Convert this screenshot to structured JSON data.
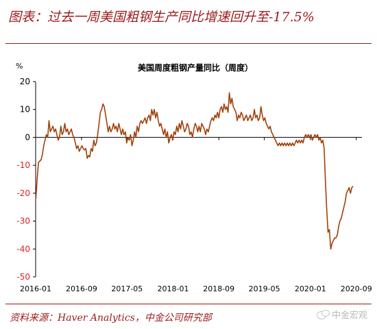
{
  "header": {
    "title": "图表：过去一周美国粗钢生产同比增速回升至-17.5%"
  },
  "footer": {
    "source": "资料来源：Haver Analytics，中金公司研究部",
    "watermark": "中金宏观"
  },
  "colors": {
    "accent": "#9a1a1a",
    "series": "#a0400a",
    "negative_tick": "#e0201a"
  },
  "chart_data": {
    "type": "line",
    "title": "美国周度粗钢产量同比（周度）",
    "ylabel": "%",
    "xlabel": "",
    "ylim": [
      -50,
      20
    ],
    "yticks": [
      20,
      10,
      0,
      -10,
      -20,
      -30,
      -40,
      -50
    ],
    "xlim": [
      "2016-01",
      "2020-10"
    ],
    "xticks": [
      "2016-01",
      "2016-09",
      "2017-05",
      "2018-01",
      "2018-09",
      "2019-05",
      "2020-01",
      "2020-09"
    ],
    "grid": false,
    "legend": "none",
    "series": [
      {
        "points": [
          [
            "2016-01-02",
            -22
          ],
          [
            "2016-01-09",
            -15
          ],
          [
            "2016-01-16",
            -9
          ],
          [
            "2016-01-23",
            -8.5
          ],
          [
            "2016-01-30",
            -8
          ],
          [
            "2016-02-06",
            -6
          ],
          [
            "2016-02-13",
            -3
          ],
          [
            "2016-02-20",
            -1
          ],
          [
            "2016-02-27",
            1
          ],
          [
            "2016-03-05",
            0
          ],
          [
            "2016-03-12",
            6
          ],
          [
            "2016-03-19",
            2
          ],
          [
            "2016-03-26",
            3
          ],
          [
            "2016-04-02",
            4
          ],
          [
            "2016-04-09",
            2
          ],
          [
            "2016-04-16",
            3
          ],
          [
            "2016-04-23",
            1
          ],
          [
            "2016-04-30",
            -1
          ],
          [
            "2016-05-07",
            0
          ],
          [
            "2016-05-14",
            4
          ],
          [
            "2016-05-21",
            1
          ],
          [
            "2016-05-28",
            2
          ],
          [
            "2016-06-04",
            5
          ],
          [
            "2016-06-11",
            2
          ],
          [
            "2016-06-18",
            3
          ],
          [
            "2016-06-25",
            1
          ],
          [
            "2016-07-02",
            2
          ],
          [
            "2016-07-09",
            3
          ],
          [
            "2016-07-16",
            1
          ],
          [
            "2016-07-23",
            0
          ],
          [
            "2016-07-30",
            -2
          ],
          [
            "2016-08-06",
            -4
          ],
          [
            "2016-08-13",
            -3
          ],
          [
            "2016-08-20",
            -5
          ],
          [
            "2016-08-27",
            -4
          ],
          [
            "2016-09-03",
            -3
          ],
          [
            "2016-09-10",
            -4
          ],
          [
            "2016-09-17",
            -4.5
          ],
          [
            "2016-09-24",
            -4
          ],
          [
            "2016-10-01",
            -7.5
          ],
          [
            "2016-10-08",
            -6.5
          ],
          [
            "2016-10-15",
            -7
          ],
          [
            "2016-10-22",
            -4
          ],
          [
            "2016-10-29",
            -5
          ],
          [
            "2016-11-05",
            -1
          ],
          [
            "2016-11-12",
            -3
          ],
          [
            "2016-11-19",
            -2
          ],
          [
            "2016-11-26",
            1
          ],
          [
            "2016-12-03",
            5
          ],
          [
            "2016-12-10",
            9
          ],
          [
            "2016-12-17",
            10
          ],
          [
            "2016-12-24",
            12
          ],
          [
            "2016-12-31",
            11
          ],
          [
            "2017-01-07",
            8
          ],
          [
            "2017-01-14",
            5
          ],
          [
            "2017-01-21",
            2
          ],
          [
            "2017-01-28",
            4
          ],
          [
            "2017-02-04",
            2
          ],
          [
            "2017-02-11",
            3
          ],
          [
            "2017-02-18",
            5
          ],
          [
            "2017-02-25",
            3
          ],
          [
            "2017-03-04",
            4
          ],
          [
            "2017-03-11",
            2
          ],
          [
            "2017-03-18",
            5
          ],
          [
            "2017-03-25",
            3
          ],
          [
            "2017-04-01",
            1
          ],
          [
            "2017-04-08",
            3
          ],
          [
            "2017-04-15",
            1
          ],
          [
            "2017-04-22",
            2
          ],
          [
            "2017-04-29",
            -2
          ],
          [
            "2017-05-06",
            0
          ],
          [
            "2017-05-13",
            -1
          ],
          [
            "2017-05-20",
            1
          ],
          [
            "2017-05-27",
            -3
          ],
          [
            "2017-06-03",
            -1
          ],
          [
            "2017-06-10",
            2
          ],
          [
            "2017-06-17",
            0
          ],
          [
            "2017-06-24",
            4
          ],
          [
            "2017-07-01",
            2
          ],
          [
            "2017-07-08",
            5
          ],
          [
            "2017-07-15",
            6
          ],
          [
            "2017-07-22",
            5
          ],
          [
            "2017-07-29",
            6
          ],
          [
            "2017-08-05",
            7
          ],
          [
            "2017-08-12",
            5
          ],
          [
            "2017-08-19",
            7
          ],
          [
            "2017-08-26",
            8
          ],
          [
            "2017-09-02",
            6
          ],
          [
            "2017-09-09",
            10
          ],
          [
            "2017-09-16",
            8
          ],
          [
            "2017-09-23",
            10
          ],
          [
            "2017-09-30",
            7
          ],
          [
            "2017-10-07",
            9
          ],
          [
            "2017-10-14",
            6
          ],
          [
            "2017-10-21",
            4
          ],
          [
            "2017-10-28",
            5
          ],
          [
            "2017-11-04",
            3
          ],
          [
            "2017-11-11",
            1
          ],
          [
            "2017-11-18",
            3
          ],
          [
            "2017-11-25",
            0
          ],
          [
            "2017-12-02",
            2
          ],
          [
            "2017-12-09",
            -2
          ],
          [
            "2017-12-16",
            0
          ],
          [
            "2017-12-23",
            1
          ],
          [
            "2017-12-30",
            -1
          ],
          [
            "2018-01-06",
            2
          ],
          [
            "2018-01-13",
            1
          ],
          [
            "2018-01-20",
            4
          ],
          [
            "2018-01-27",
            2
          ],
          [
            "2018-02-03",
            5
          ],
          [
            "2018-02-10",
            3
          ],
          [
            "2018-02-17",
            6
          ],
          [
            "2018-02-24",
            4
          ],
          [
            "2018-03-03",
            2
          ],
          [
            "2018-03-10",
            3
          ],
          [
            "2018-03-17",
            5
          ],
          [
            "2018-03-24",
            4
          ],
          [
            "2018-03-31",
            1
          ],
          [
            "2018-04-07",
            2
          ],
          [
            "2018-04-14",
            0
          ],
          [
            "2018-04-21",
            3
          ],
          [
            "2018-04-28",
            5
          ],
          [
            "2018-05-05",
            4
          ],
          [
            "2018-05-12",
            2
          ],
          [
            "2018-05-19",
            4
          ],
          [
            "2018-05-26",
            2
          ],
          [
            "2018-06-02",
            5
          ],
          [
            "2018-06-09",
            4
          ],
          [
            "2018-06-16",
            3
          ],
          [
            "2018-06-23",
            1
          ],
          [
            "2018-06-30",
            3
          ],
          [
            "2018-07-07",
            2
          ],
          [
            "2018-07-14",
            4
          ],
          [
            "2018-07-21",
            6
          ],
          [
            "2018-07-28",
            7
          ],
          [
            "2018-08-04",
            6
          ],
          [
            "2018-08-11",
            8
          ],
          [
            "2018-08-18",
            7
          ],
          [
            "2018-08-25",
            9
          ],
          [
            "2018-09-01",
            7
          ],
          [
            "2018-09-08",
            10
          ],
          [
            "2018-09-15",
            11
          ],
          [
            "2018-09-22",
            9
          ],
          [
            "2018-09-29",
            12
          ],
          [
            "2018-10-06",
            10
          ],
          [
            "2018-10-13",
            11
          ],
          [
            "2018-10-20",
            9
          ],
          [
            "2018-10-27",
            16
          ],
          [
            "2018-11-03",
            12
          ],
          [
            "2018-11-10",
            14
          ],
          [
            "2018-11-17",
            11
          ],
          [
            "2018-11-24",
            10
          ],
          [
            "2018-12-01",
            9
          ],
          [
            "2018-12-08",
            6
          ],
          [
            "2018-12-15",
            8
          ],
          [
            "2018-12-22",
            7
          ],
          [
            "2018-12-29",
            9
          ],
          [
            "2019-01-05",
            8
          ],
          [
            "2019-01-12",
            6
          ],
          [
            "2019-01-19",
            7
          ],
          [
            "2019-01-26",
            8
          ],
          [
            "2019-02-02",
            6
          ],
          [
            "2019-02-09",
            7
          ],
          [
            "2019-02-16",
            8
          ],
          [
            "2019-02-23",
            6
          ],
          [
            "2019-03-02",
            7
          ],
          [
            "2019-03-09",
            10
          ],
          [
            "2019-03-16",
            7
          ],
          [
            "2019-03-23",
            8
          ],
          [
            "2019-03-30",
            6
          ],
          [
            "2019-04-06",
            7
          ],
          [
            "2019-04-13",
            11
          ],
          [
            "2019-04-20",
            8
          ],
          [
            "2019-04-27",
            6
          ],
          [
            "2019-05-04",
            7
          ],
          [
            "2019-05-11",
            5
          ],
          [
            "2019-05-18",
            4
          ],
          [
            "2019-05-25",
            3
          ],
          [
            "2019-06-01",
            4
          ],
          [
            "2019-06-08",
            2
          ],
          [
            "2019-06-15",
            1
          ],
          [
            "2019-06-22",
            0
          ],
          [
            "2019-06-29",
            -1
          ],
          [
            "2019-07-06",
            -2
          ],
          [
            "2019-07-13",
            -3
          ],
          [
            "2019-07-20",
            -2
          ],
          [
            "2019-07-27",
            -3
          ],
          [
            "2019-08-03",
            -2
          ],
          [
            "2019-08-10",
            -3
          ],
          [
            "2019-08-17",
            -2
          ],
          [
            "2019-08-24",
            -3
          ],
          [
            "2019-08-31",
            -2
          ],
          [
            "2019-09-07",
            -3
          ],
          [
            "2019-09-14",
            -2
          ],
          [
            "2019-09-21",
            -3
          ],
          [
            "2019-09-28",
            -2
          ],
          [
            "2019-10-05",
            -3
          ],
          [
            "2019-10-12",
            -2
          ],
          [
            "2019-10-19",
            -1
          ],
          [
            "2019-10-26",
            -2
          ],
          [
            "2019-11-02",
            -1
          ],
          [
            "2019-11-09",
            -2
          ],
          [
            "2019-11-16",
            -1
          ],
          [
            "2019-11-23",
            -2
          ],
          [
            "2019-11-30",
            0
          ],
          [
            "2019-12-07",
            1
          ],
          [
            "2019-12-14",
            0
          ],
          [
            "2019-12-21",
            1
          ],
          [
            "2019-12-28",
            0
          ],
          [
            "2020-01-04",
            1
          ],
          [
            "2020-01-11",
            -1
          ],
          [
            "2020-01-18",
            0
          ],
          [
            "2020-01-25",
            1
          ],
          [
            "2020-02-01",
            0
          ],
          [
            "2020-02-08",
            1
          ],
          [
            "2020-02-15",
            -1
          ],
          [
            "2020-02-22",
            0
          ],
          [
            "2020-02-29",
            -2
          ],
          [
            "2020-03-07",
            -1
          ],
          [
            "2020-03-14",
            -4
          ],
          [
            "2020-03-21",
            -16
          ],
          [
            "2020-03-28",
            -26
          ],
          [
            "2020-04-04",
            -34
          ],
          [
            "2020-04-11",
            -33
          ],
          [
            "2020-04-18",
            -40
          ],
          [
            "2020-04-25",
            -38
          ],
          [
            "2020-05-02",
            -37
          ],
          [
            "2020-05-09",
            -36
          ],
          [
            "2020-05-16",
            -36
          ],
          [
            "2020-05-23",
            -35
          ],
          [
            "2020-05-30",
            -32
          ],
          [
            "2020-06-06",
            -30
          ],
          [
            "2020-06-13",
            -29
          ],
          [
            "2020-06-20",
            -27
          ],
          [
            "2020-06-27",
            -25
          ],
          [
            "2020-07-04",
            -23
          ],
          [
            "2020-07-11",
            -20
          ],
          [
            "2020-07-18",
            -19
          ],
          [
            "2020-07-25",
            -18
          ],
          [
            "2020-08-01",
            -20
          ],
          [
            "2020-08-08",
            -18
          ],
          [
            "2020-08-15",
            -17.5
          ]
        ]
      }
    ]
  }
}
